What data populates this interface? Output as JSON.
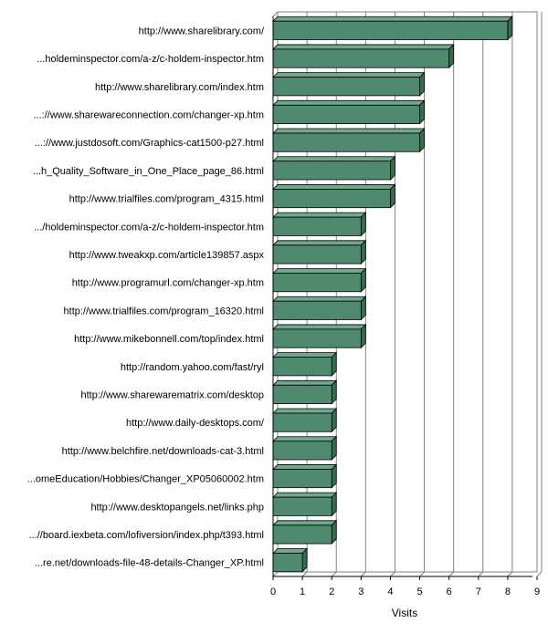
{
  "chart_data": {
    "type": "bar",
    "orientation": "horizontal",
    "categories": [
      "http://www.sharelibrary.com/",
      "...holdeminspector.com/a-z/c-holdem-inspector.htm",
      "http://www.sharelibrary.com/index.htm",
      "...://www.sharewareconnection.com/changer-xp.htm",
      "...://www.justdosoft.com/Graphics-cat1500-p27.html",
      "...h_Quality_Software_in_One_Place_page_86.html",
      "http://www.trialfiles.com/program_4315.html",
      ".../holdeminspector.com/a-z/c-holdem-inspector.htm",
      "http://www.tweakxp.com/article139857.aspx",
      "http://www.programurl.com/changer-xp.htm",
      "http://www.trialfiles.com/program_16320.html",
      "http://www.mikebonnell.com/top/index.html",
      "http://random.yahoo.com/fast/ryl",
      "http://www.sharewarematrix.com/desktop",
      "http://www.daily-desktops.com/",
      "http://www.belchfire.net/downloads-cat-3.html",
      "...omeEducation/Hobbies/Changer_XP05060002.htm",
      "http://www.desktopangels.net/links.php",
      "...//board.iexbeta.com/lofiversion/index.php/t393.html",
      "...re.net/downloads-file-48-details-Changer_XP.html"
    ],
    "values": [
      8,
      6,
      5,
      5,
      5,
      4,
      4,
      3,
      3,
      3,
      3,
      3,
      2,
      2,
      2,
      2,
      2,
      2,
      2,
      1
    ],
    "xlabel": "Visits",
    "xlim": [
      0,
      9
    ],
    "xticks": [
      "0",
      "1",
      "2",
      "3",
      "4",
      "5",
      "6",
      "7",
      "8",
      "9"
    ],
    "grid": true,
    "bar_color": "#4f8a6e",
    "bar_top_color": "#6fa88c",
    "bar_side_color": "#3a6a53",
    "grid_color": "#808080"
  }
}
